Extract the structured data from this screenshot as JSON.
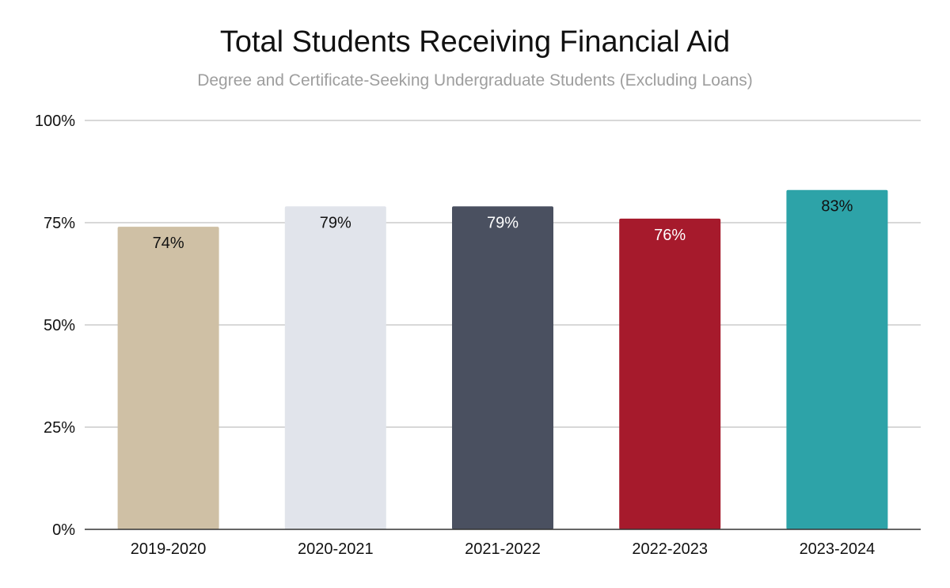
{
  "chart_data": {
    "type": "bar",
    "title": "Total Students Receiving Financial Aid",
    "subtitle": "Degree and Certificate-Seeking Undergraduate Students (Excluding Loans)",
    "categories": [
      "2019-2020",
      "2020-2021",
      "2021-2022",
      "2022-2023",
      "2023-2024"
    ],
    "values": [
      74,
      79,
      79,
      76,
      83
    ],
    "data_labels": [
      "74%",
      "79%",
      "79%",
      "76%",
      "83%"
    ],
    "colors": [
      "#cfc0a5",
      "#e1e4eb",
      "#4a5060",
      "#a61a2c",
      "#2da3a8"
    ],
    "label_colors": [
      "#111111",
      "#111111",
      "#ffffff",
      "#ffffff",
      "#111111"
    ],
    "ylim": [
      0,
      100
    ],
    "yticks": [
      0,
      25,
      50,
      75,
      100
    ],
    "ytick_labels": [
      "0%",
      "25%",
      "50%",
      "75%",
      "100%"
    ],
    "grid": true,
    "xlabel": "",
    "ylabel": ""
  }
}
